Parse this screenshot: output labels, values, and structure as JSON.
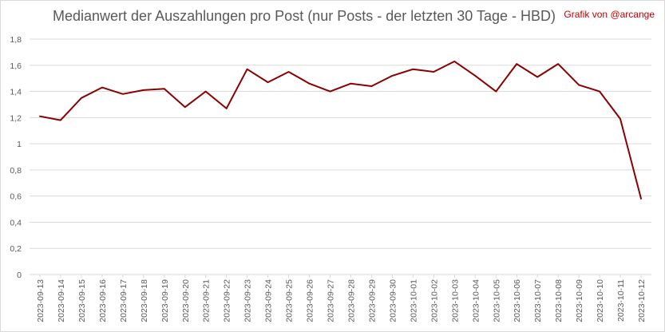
{
  "chart_data": {
    "type": "line",
    "title": "Medianwert der Auszahlungen pro Post (nur Posts - der letzten 30 Tage - HBD)",
    "credit": "Grafik von @arcange",
    "xlabel": "",
    "ylabel": "",
    "ylim": [
      0,
      1.8
    ],
    "yticks": [
      "0",
      "0,2",
      "0,4",
      "0,6",
      "0,8",
      "1",
      "1,2",
      "1,4",
      "1,6",
      "1,8"
    ],
    "grid": true,
    "legend": "none",
    "colors": {
      "line": "#8b0000",
      "grid": "#d9d9d9",
      "text": "#595959",
      "credit": "#c00000"
    },
    "categories": [
      "2023-09-13",
      "2023-09-14",
      "2023-09-15",
      "2023-09-16",
      "2023-09-17",
      "2023-09-18",
      "2023-09-19",
      "2023-09-20",
      "2023-09-21",
      "2023-09-22",
      "2023-09-23",
      "2023-09-24",
      "2023-09-25",
      "2023-09-26",
      "2023-09-27",
      "2023-09-28",
      "2023-09-29",
      "2023-09-30",
      "2023-10-01",
      "2023-10-02",
      "2023-10-03",
      "2023-10-04",
      "2023-10-05",
      "2023-10-06",
      "2023-10-07",
      "2023-10-08",
      "2023-10-09",
      "2023-10-10",
      "2023-10-11",
      "2023-10-12"
    ],
    "series": [
      {
        "values": [
          1.21,
          1.18,
          1.35,
          1.43,
          1.38,
          1.41,
          1.42,
          1.28,
          1.4,
          1.27,
          1.57,
          1.47,
          1.55,
          1.46,
          1.4,
          1.46,
          1.44,
          1.52,
          1.57,
          1.55,
          1.63,
          1.52,
          1.4,
          1.61,
          1.51,
          1.61,
          1.45,
          1.4,
          1.19,
          0.58
        ]
      }
    ]
  }
}
